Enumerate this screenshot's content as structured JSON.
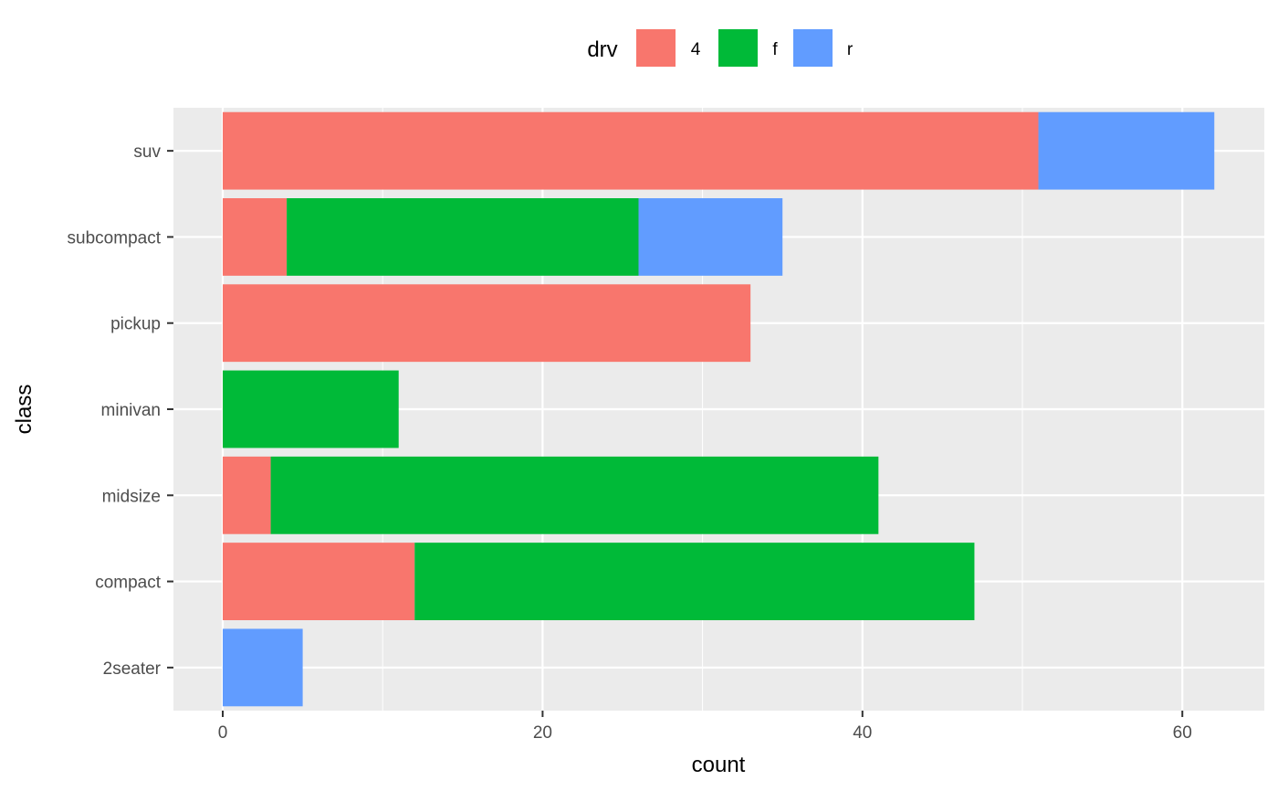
{
  "chart_data": {
    "type": "bar",
    "orientation": "horizontal",
    "stacked": true,
    "xlabel": "count",
    "ylabel": "class",
    "xlim": [
      0,
      63
    ],
    "x_ticks": [
      0,
      20,
      40,
      60
    ],
    "categories": [
      "2seater",
      "compact",
      "midsize",
      "minivan",
      "pickup",
      "subcompact",
      "suv"
    ],
    "legend": {
      "title": "drv",
      "position": "top"
    },
    "series": [
      {
        "name": "4",
        "color": "#F8766D",
        "values": [
          0,
          12,
          3,
          0,
          33,
          4,
          51
        ]
      },
      {
        "name": "f",
        "color": "#00BA38",
        "values": [
          0,
          35,
          38,
          11,
          0,
          22,
          0
        ]
      },
      {
        "name": "r",
        "color": "#619CFF",
        "values": [
          5,
          0,
          0,
          0,
          0,
          9,
          11
        ]
      }
    ],
    "panel_background": "#EBEBEB",
    "grid": true
  }
}
